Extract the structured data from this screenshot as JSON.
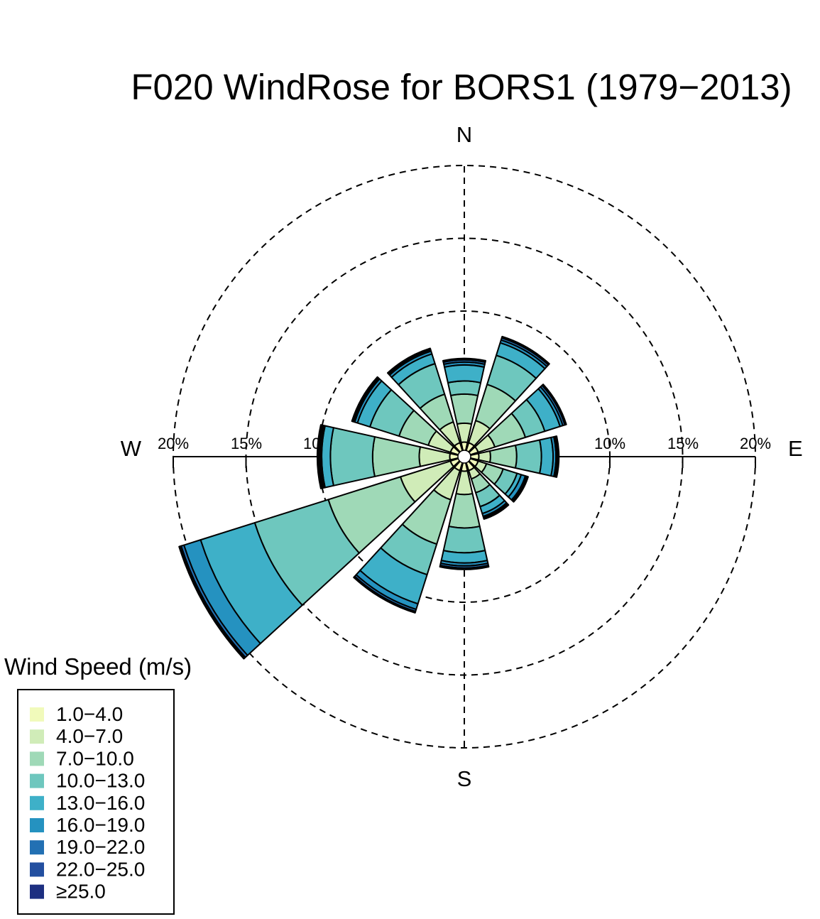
{
  "chart_data": {
    "type": "windrose",
    "title": "F020 WindRose for BORS1 (1979−2013)",
    "compass": [
      "N",
      "E",
      "S",
      "W"
    ],
    "radial_axis": {
      "unit": "%",
      "ticks": [
        10,
        15,
        20
      ],
      "tick_labels": [
        "10%",
        "15%",
        "20%"
      ],
      "max": 20
    },
    "legend": {
      "title": "Wind Speed (m/s)",
      "placement": "bottom-left"
    },
    "speed_bins": [
      {
        "label": "1.0−4.0",
        "color": "#f1fabb"
      },
      {
        "label": "4.0−7.0",
        "color": "#d0ecb8"
      },
      {
        "label": "7.0−10.0",
        "color": "#9fd9b7"
      },
      {
        "label": "10.0−13.0",
        "color": "#6ec7be"
      },
      {
        "label": "13.0−16.0",
        "color": "#3eb0c8"
      },
      {
        "label": "16.0−19.0",
        "color": "#2592c0"
      },
      {
        "label": "19.0−22.0",
        "color": "#2270b3"
      },
      {
        "label": "22.0−25.0",
        "color": "#234fa0"
      },
      {
        "label": "≥25.0",
        "color": "#1d2f81"
      }
    ],
    "sectors_deg": [
      0,
      30,
      60,
      90,
      120,
      150,
      180,
      210,
      240,
      270,
      300,
      330
    ],
    "cumulative_percent": [
      [
        1.0,
        2.3,
        4.3,
        5.2,
        6.3,
        6.5,
        6.65,
        6.7,
        6.75
      ],
      [
        1.0,
        2.6,
        5.2,
        7.3,
        8.2,
        8.4,
        8.55,
        8.6,
        8.65
      ],
      [
        1.0,
        2.2,
        4.4,
        5.8,
        6.9,
        7.1,
        7.25,
        7.3,
        7.35
      ],
      [
        1.0,
        1.8,
        3.6,
        5.3,
        6.1,
        6.3,
        6.4,
        6.45,
        6.5
      ],
      [
        1.0,
        1.6,
        2.8,
        3.8,
        4.1,
        4.4,
        4.5,
        4.55,
        4.6
      ],
      [
        1.0,
        1.6,
        2.6,
        3.6,
        4.1,
        4.3,
        4.4,
        4.45,
        4.5
      ],
      [
        1.0,
        2.6,
        4.9,
        6.6,
        7.3,
        7.5,
        7.65,
        7.7,
        7.75
      ],
      [
        1.0,
        3.1,
        6.3,
        8.5,
        10.6,
        11.0,
        11.15,
        11.2,
        11.25
      ],
      [
        1.0,
        4.6,
        9.8,
        15.1,
        19.0,
        20.2,
        20.4,
        20.5,
        20.55
      ],
      [
        1.0,
        3.1,
        6.3,
        9.2,
        9.8,
        9.9,
        10.0,
        10.05,
        10.1
      ],
      [
        1.0,
        2.6,
        4.7,
        6.8,
        7.7,
        7.9,
        8.0,
        8.05,
        8.1
      ],
      [
        1.0,
        2.5,
        4.5,
        6.7,
        7.4,
        7.6,
        7.7,
        7.75,
        7.8
      ]
    ]
  }
}
